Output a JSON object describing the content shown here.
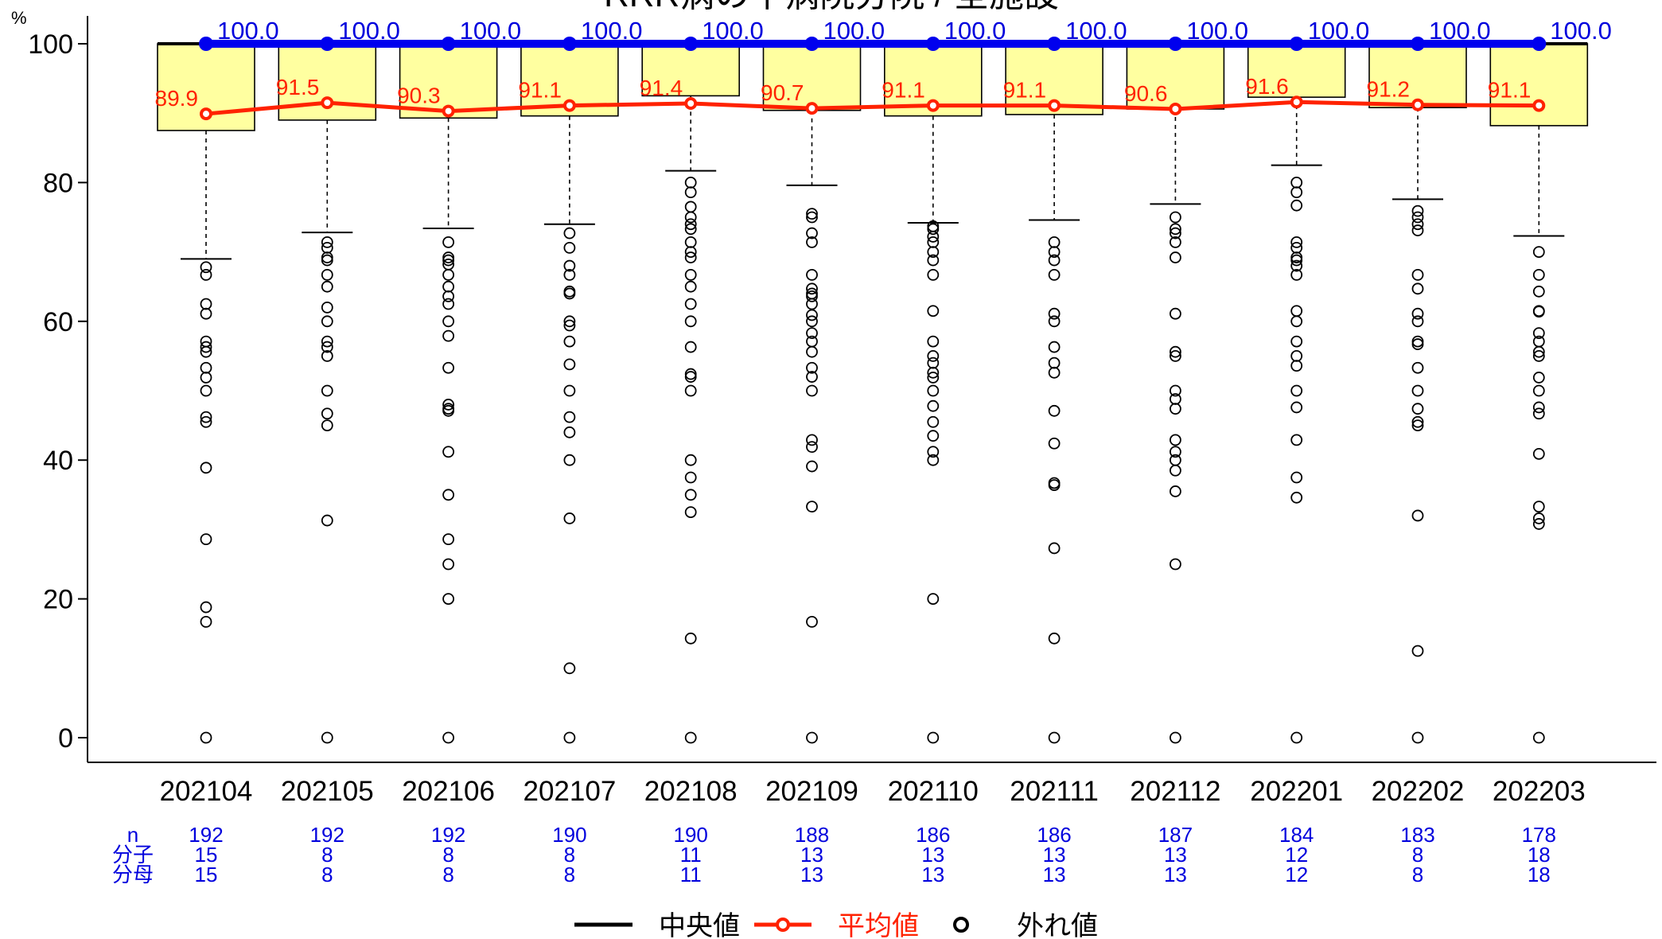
{
  "chart_data": {
    "type": "box",
    "title": "RRR病の中病院分院 / 全施設",
    "ylabel": "%",
    "ylim": [
      0,
      100
    ],
    "yticks": [
      0,
      20,
      40,
      60,
      80,
      100
    ],
    "categories": [
      "202104",
      "202105",
      "202106",
      "202107",
      "202108",
      "202109",
      "202110",
      "202111",
      "202112",
      "202201",
      "202202",
      "202203"
    ],
    "series": [
      {
        "name": "中央値",
        "values": [
          100,
          100,
          100,
          100,
          100,
          100,
          100,
          100,
          100,
          100,
          100,
          100
        ],
        "label_color": "#0000dd"
      },
      {
        "name": "平均値",
        "values": [
          89.9,
          91.5,
          90.3,
          91.1,
          91.4,
          90.7,
          91.1,
          91.1,
          90.6,
          91.6,
          91.2,
          91.1
        ],
        "label_color": "#ff2200"
      }
    ],
    "boxes": [
      {
        "q1": 87.5,
        "q3": 100,
        "whisker_low": 69.0
      },
      {
        "q1": 89.0,
        "q3": 100,
        "whisker_low": 72.8
      },
      {
        "q1": 89.3,
        "q3": 100,
        "whisker_low": 73.4
      },
      {
        "q1": 89.6,
        "q3": 100,
        "whisker_low": 74.0
      },
      {
        "q1": 92.5,
        "q3": 100,
        "whisker_low": 81.7
      },
      {
        "q1": 90.4,
        "q3": 100,
        "whisker_low": 79.6
      },
      {
        "q1": 89.6,
        "q3": 100,
        "whisker_low": 74.2
      },
      {
        "q1": 89.8,
        "q3": 100,
        "whisker_low": 74.6
      },
      {
        "q1": 90.6,
        "q3": 100,
        "whisker_low": 76.9
      },
      {
        "q1": 92.3,
        "q3": 100,
        "whisker_low": 82.5
      },
      {
        "q1": 90.8,
        "q3": 100,
        "whisker_low": 77.6
      },
      {
        "q1": 88.2,
        "q3": 100,
        "whisker_low": 72.3
      }
    ],
    "outliers": [
      [
        67.8,
        66.7,
        62.5,
        61.1,
        57.1,
        56.3,
        55.6,
        53.3,
        51.9,
        50.0,
        46.2,
        45.5,
        38.9,
        28.6,
        18.8,
        16.7,
        0
      ],
      [
        71.4,
        70.6,
        69.2,
        68.8,
        66.7,
        65.0,
        62.0,
        60.0,
        57.1,
        56.3,
        55.0,
        50.0,
        46.7,
        45.0,
        31.3,
        0
      ],
      [
        71.4,
        69.2,
        68.8,
        68.2,
        66.7,
        65.0,
        63.6,
        62.5,
        60.0,
        57.9,
        53.3,
        48.0,
        47.4,
        47.1,
        41.2,
        35.0,
        28.6,
        25.0,
        20.0,
        0
      ],
      [
        72.7,
        70.6,
        68.0,
        66.7,
        64.3,
        64.0,
        60.0,
        59.4,
        57.1,
        53.8,
        50.0,
        46.2,
        44.0,
        40.0,
        31.6,
        10.0,
        0
      ],
      [
        80.0,
        78.6,
        76.5,
        75.0,
        74.0,
        73.3,
        71.4,
        70.0,
        69.2,
        66.7,
        65.0,
        62.5,
        60.0,
        56.3,
        52.4,
        52.0,
        50.0,
        40.0,
        37.5,
        35.0,
        32.5,
        14.3,
        0
      ],
      [
        75.5,
        75.0,
        72.7,
        71.4,
        66.7,
        64.7,
        64.0,
        63.6,
        62.5,
        60.9,
        60.0,
        58.3,
        57.1,
        55.6,
        53.3,
        52.0,
        50.0,
        42.9,
        41.9,
        39.1,
        33.3,
        16.7,
        0
      ],
      [
        73.7,
        73.3,
        72.2,
        71.4,
        70.0,
        68.8,
        66.7,
        61.5,
        57.1,
        55.0,
        54.0,
        52.6,
        51.9,
        50.0,
        47.8,
        45.5,
        43.5,
        41.2,
        40.0,
        20.0,
        0
      ],
      [
        71.4,
        70.0,
        68.8,
        66.7,
        61.1,
        60.0,
        56.3,
        54.0,
        52.6,
        47.1,
        42.4,
        36.7,
        36.4,
        27.3,
        14.3,
        0
      ],
      [
        75.0,
        73.3,
        72.7,
        71.4,
        69.2,
        61.1,
        55.6,
        55.0,
        50.0,
        48.8,
        47.4,
        42.9,
        41.2,
        40.0,
        38.5,
        35.5,
        25.0,
        0
      ],
      [
        80.0,
        78.6,
        76.7,
        71.4,
        70.6,
        69.2,
        68.8,
        68.0,
        66.7,
        61.5,
        60.0,
        57.1,
        55.0,
        53.6,
        50.0,
        47.6,
        42.9,
        37.5,
        34.6,
        0
      ],
      [
        75.9,
        75.0,
        74.0,
        73.1,
        66.7,
        64.7,
        61.1,
        60.0,
        57.1,
        56.7,
        53.3,
        50.0,
        47.4,
        45.5,
        45.0,
        32.0,
        12.5,
        0
      ],
      [
        70.0,
        66.7,
        64.3,
        61.5,
        61.4,
        58.3,
        57.1,
        55.6,
        55.0,
        51.9,
        50.0,
        47.6,
        46.7,
        40.9,
        33.3,
        31.6,
        30.8,
        0
      ]
    ],
    "n": [
      192,
      192,
      192,
      190,
      190,
      188,
      186,
      186,
      187,
      184,
      183,
      178
    ],
    "numerator": [
      15,
      8,
      8,
      8,
      11,
      13,
      13,
      13,
      13,
      12,
      8,
      18
    ],
    "denominator": [
      15,
      8,
      8,
      8,
      11,
      13,
      13,
      13,
      13,
      12,
      8,
      18
    ],
    "table_labels": {
      "n": "n",
      "numerator": "分子",
      "denominator": "分母"
    },
    "legend": {
      "position": "bottom",
      "items": [
        "中央値",
        "平均値",
        "外れ値"
      ]
    },
    "colors": {
      "box_fill": "#ffffa0",
      "median": "#0000ee",
      "mean": "#ff2200",
      "table_text": "#0000dd"
    }
  }
}
